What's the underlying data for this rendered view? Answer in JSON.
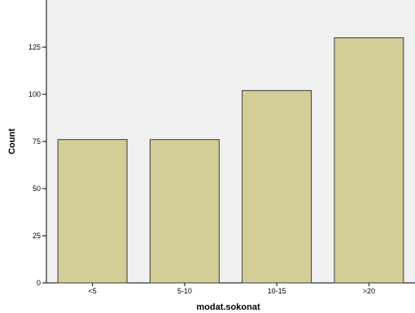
{
  "chart_data": {
    "type": "bar",
    "categories": [
      "<5",
      "5-10",
      "10-15",
      ">20"
    ],
    "values": [
      76,
      76,
      102,
      130
    ],
    "title": "",
    "xlabel": "modat.sokonat",
    "ylabel": "Count",
    "ylim": [
      0,
      150
    ],
    "yticks": [
      0,
      25,
      50,
      75,
      100,
      125
    ],
    "grid": false,
    "legend": "none"
  },
  "style": {
    "plot_background": "#f0f0f0",
    "bar_fill": "#d3ce97",
    "bar_stroke": "#3a3a3a",
    "axis_color": "#000000"
  }
}
